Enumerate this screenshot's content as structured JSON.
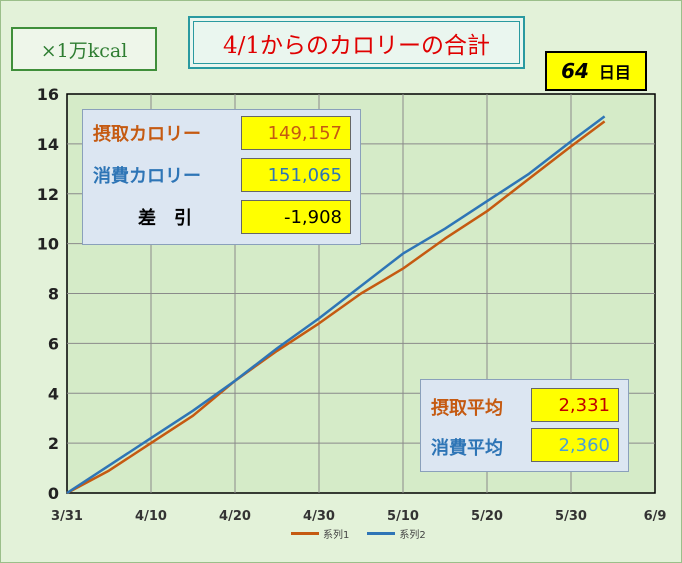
{
  "unit_label": "×1万kcal",
  "title": "4/1からのカロリーの合計",
  "day_counter": {
    "number": "64",
    "unit": "日目"
  },
  "summary": {
    "intake_label": "摂取カロリー",
    "intake_value": "149,157",
    "burn_label": "消費カロリー",
    "burn_value": "151,065",
    "diff_label": "差　引",
    "diff_value": "-1,908"
  },
  "averages": {
    "intake_label": "摂取平均",
    "intake_value": "2,331",
    "burn_label": "消費平均",
    "burn_value": "2,360"
  },
  "colors": {
    "series1": "#c55a11",
    "series2": "#2e75b6",
    "intake_text": "#c55a11",
    "burn_text": "#2e75b6",
    "intake_avg_value": "#c00000",
    "burn_avg_value": "#4a9fd5"
  },
  "chart_data": {
    "type": "line",
    "x_tick_labels": [
      "3/31",
      "4/10",
      "4/20",
      "4/30",
      "5/10",
      "5/20",
      "5/30",
      "6/9"
    ],
    "xlim": [
      "3/31",
      "6/9"
    ],
    "ylim": [
      0,
      16
    ],
    "y_ticks": [
      0,
      2,
      4,
      6,
      8,
      10,
      12,
      14,
      16
    ],
    "grid": true,
    "legend_position": "bottom",
    "series": [
      {
        "name": "系列1",
        "points": [
          [
            "3/31",
            0
          ],
          [
            "4/5",
            0.9
          ],
          [
            "4/10",
            2.0
          ],
          [
            "4/15",
            3.1
          ],
          [
            "4/20",
            4.5
          ],
          [
            "4/25",
            5.7
          ],
          [
            "4/30",
            6.8
          ],
          [
            "5/5",
            8.0
          ],
          [
            "5/10",
            9.0
          ],
          [
            "5/15",
            10.2
          ],
          [
            "5/20",
            11.3
          ],
          [
            "5/25",
            12.6
          ],
          [
            "5/30",
            13.9
          ],
          [
            "6/3",
            14.9
          ]
        ]
      },
      {
        "name": "系列2",
        "points": [
          [
            "3/31",
            0
          ],
          [
            "4/5",
            1.1
          ],
          [
            "4/10",
            2.2
          ],
          [
            "4/15",
            3.3
          ],
          [
            "4/20",
            4.5
          ],
          [
            "4/25",
            5.8
          ],
          [
            "4/30",
            7.0
          ],
          [
            "5/5",
            8.3
          ],
          [
            "5/10",
            9.6
          ],
          [
            "5/15",
            10.6
          ],
          [
            "5/20",
            11.7
          ],
          [
            "5/25",
            12.8
          ],
          [
            "5/30",
            14.1
          ],
          [
            "6/3",
            15.1
          ]
        ]
      }
    ]
  }
}
